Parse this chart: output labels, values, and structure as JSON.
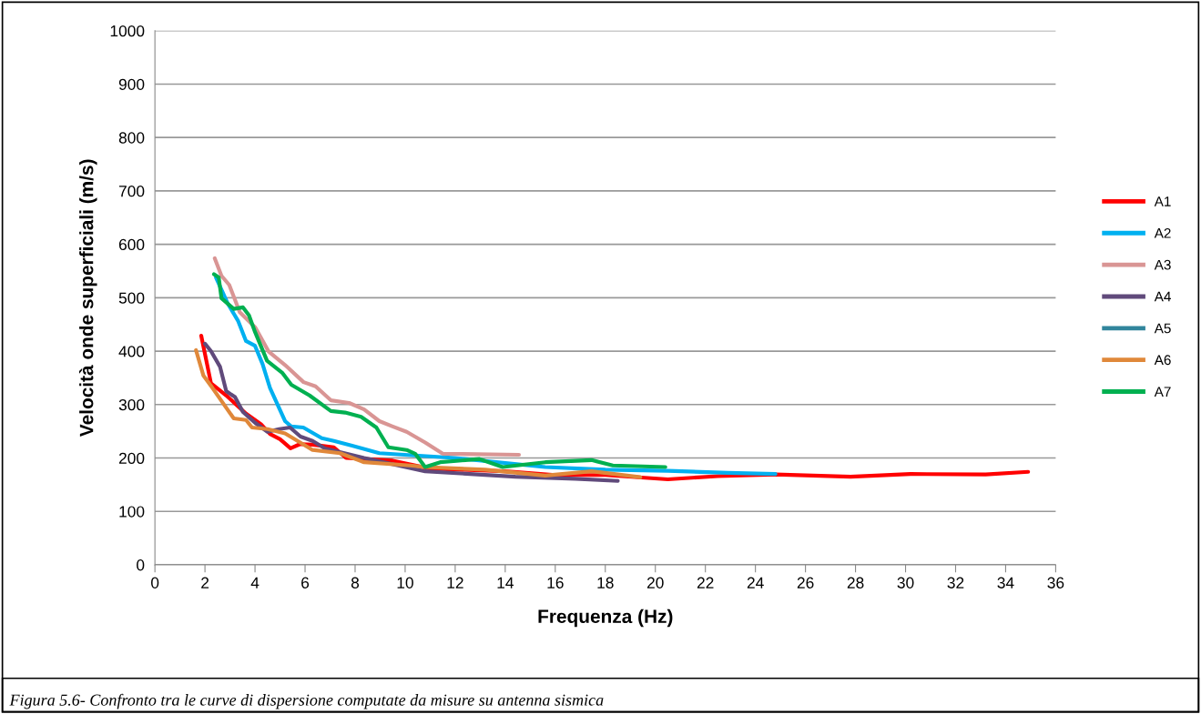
{
  "chart_data": {
    "type": "line",
    "xlabel": "Frequenza (Hz)",
    "ylabel": "Velocità onde superficiali (m/s)",
    "xlim": [
      0,
      36
    ],
    "xticks": [
      0,
      2,
      4,
      6,
      8,
      10,
      12,
      14,
      16,
      18,
      20,
      22,
      24,
      26,
      28,
      30,
      32,
      34,
      36
    ],
    "ylim": [
      0,
      1000
    ],
    "yticks": [
      0,
      100,
      200,
      300,
      400,
      500,
      600,
      700,
      800,
      900,
      1000
    ],
    "grid": "y",
    "legend": "right",
    "marker": "none",
    "line_style": "solid",
    "annotations": [
      "Figura 5.6- Confronto tra le curve di dispersione computate da misure su antenna sismica"
    ],
    "series": [
      {
        "name": "A1",
        "color": "#ff0000",
        "x": [
          1.85,
          2.24,
          2.85,
          3.64,
          4.24,
          4.6,
          5.0,
          5.42,
          5.8,
          6.3,
          7.15,
          7.64,
          9.5,
          11,
          14,
          16,
          18,
          20.5,
          22.5,
          24.8,
          27.8,
          30.2,
          33.2,
          34.9
        ],
        "values": [
          429,
          340,
          317,
          283,
          263,
          245,
          235,
          218,
          226,
          225,
          220,
          200,
          195,
          180,
          175,
          168,
          168,
          160,
          166,
          169,
          165,
          170,
          169,
          174
        ]
      },
      {
        "name": "A2",
        "color": "#00b0f0",
        "x": [
          2.44,
          2.9,
          3.33,
          3.64,
          4.0,
          4.3,
          4.6,
          5.2,
          5.45,
          5.93,
          6.67,
          7.15,
          7.88,
          8.97,
          12,
          15.6,
          18,
          20.5,
          22.9,
          24.8
        ],
        "values": [
          538,
          490,
          456,
          419,
          410,
          376,
          331,
          269,
          259,
          257,
          237,
          232,
          223,
          209,
          200,
          183,
          178,
          176,
          172,
          170
        ]
      },
      {
        "name": "A3",
        "color": "#d99594",
        "x": [
          2.39,
          2.66,
          2.97,
          3.39,
          4.0,
          4.55,
          5.2,
          5.94,
          6.42,
          7.03,
          7.76,
          8.36,
          8.97,
          9.5,
          10.06,
          10.8,
          11.5,
          14.55
        ],
        "values": [
          574,
          541,
          524,
          473,
          445,
          399,
          374,
          342,
          334,
          308,
          303,
          291,
          269,
          259,
          249,
          229,
          208,
          206
        ]
      },
      {
        "name": "A4",
        "color": "#604a7b",
        "x": [
          2.0,
          2.24,
          2.6,
          2.85,
          3.2,
          3.52,
          4.0,
          4.5,
          4.97,
          5.4,
          5.82,
          6.3,
          6.79,
          8.36,
          10.8,
          14.4,
          16.8,
          18.5
        ],
        "values": [
          414,
          400,
          371,
          325,
          314,
          286,
          266,
          249,
          254,
          257,
          240,
          232,
          218,
          200,
          175,
          165,
          161,
          157
        ]
      },
      {
        "name": "A5",
        "color": "#31859c"
      },
      {
        "name": "A6",
        "color": "#e0883a",
        "x": [
          1.64,
          1.94,
          2.3,
          3.15,
          3.64,
          3.88,
          4.5,
          5.2,
          5.7,
          6.3,
          7.4,
          8.36,
          10.2,
          10.8,
          13.2,
          15.6,
          17.45,
          19.4
        ],
        "values": [
          402,
          354,
          331,
          274,
          271,
          257,
          254,
          246,
          232,
          215,
          209,
          192,
          186,
          183,
          178,
          167,
          175,
          164
        ]
      },
      {
        "name": "A7",
        "color": "#00b050",
        "x": [
          2.36,
          2.55,
          2.66,
          3.15,
          3.52,
          3.76,
          4.0,
          4.48,
          5.1,
          5.45,
          6.18,
          7.03,
          7.6,
          8.24,
          8.85,
          9.33,
          10.06,
          10.4,
          10.8,
          11.4,
          12.97,
          13.9,
          15.6,
          17.45,
          18.3,
          20.4
        ],
        "values": [
          544,
          538,
          499,
          479,
          482,
          467,
          436,
          382,
          359,
          337,
          317,
          288,
          285,
          277,
          257,
          220,
          215,
          208,
          183,
          192,
          198,
          183,
          192,
          196,
          186,
          183
        ]
      }
    ]
  }
}
